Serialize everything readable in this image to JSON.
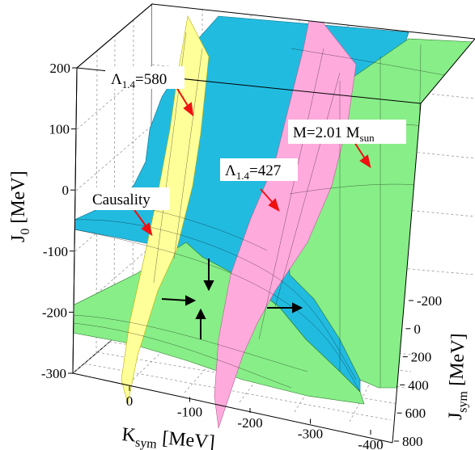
{
  "chart_data": {
    "type": "surface3d",
    "title": "",
    "axes": {
      "y_vertical": {
        "label_main": "J",
        "label_sub": "0",
        "label_unit": " [MeV]",
        "ticks": [
          "200",
          "100",
          "0",
          "-100",
          "-200",
          "-300"
        ],
        "range": [
          -300,
          200
        ]
      },
      "x_front": {
        "label_main": "K",
        "label_sub": "sym",
        "label_unit": " [MeV]",
        "ticks": [
          "0",
          "-100",
          "-200",
          "-300",
          "-400"
        ],
        "range": [
          0,
          -400
        ]
      },
      "z_depth": {
        "label_main": "J",
        "label_sub": "sym",
        "label_unit": " [MeV]",
        "ticks": [
          "-200",
          "0",
          "200",
          "400",
          "600",
          "800"
        ],
        "range": [
          -200,
          800
        ]
      }
    },
    "annotations": {
      "lambda580": {
        "main": "Λ",
        "sub": "1.4",
        "value": "=580"
      },
      "lambda427": {
        "main": "Λ",
        "sub": "1.4",
        "value": "=427"
      },
      "mass": {
        "main": "M=2.01 M",
        "sub": "sun"
      },
      "causality": {
        "text": "Causality"
      }
    },
    "surfaces": [
      {
        "name": "Λ1.4=580 constraint",
        "color": "#ffff99"
      },
      {
        "name": "Λ1.4=427 constraint",
        "color": "#ffaadd"
      },
      {
        "name": "M=2.01 Msun constraint",
        "color": "#88ee88"
      },
      {
        "name": "Causality constraint",
        "color": "#22bbe0"
      }
    ],
    "grid": true
  }
}
